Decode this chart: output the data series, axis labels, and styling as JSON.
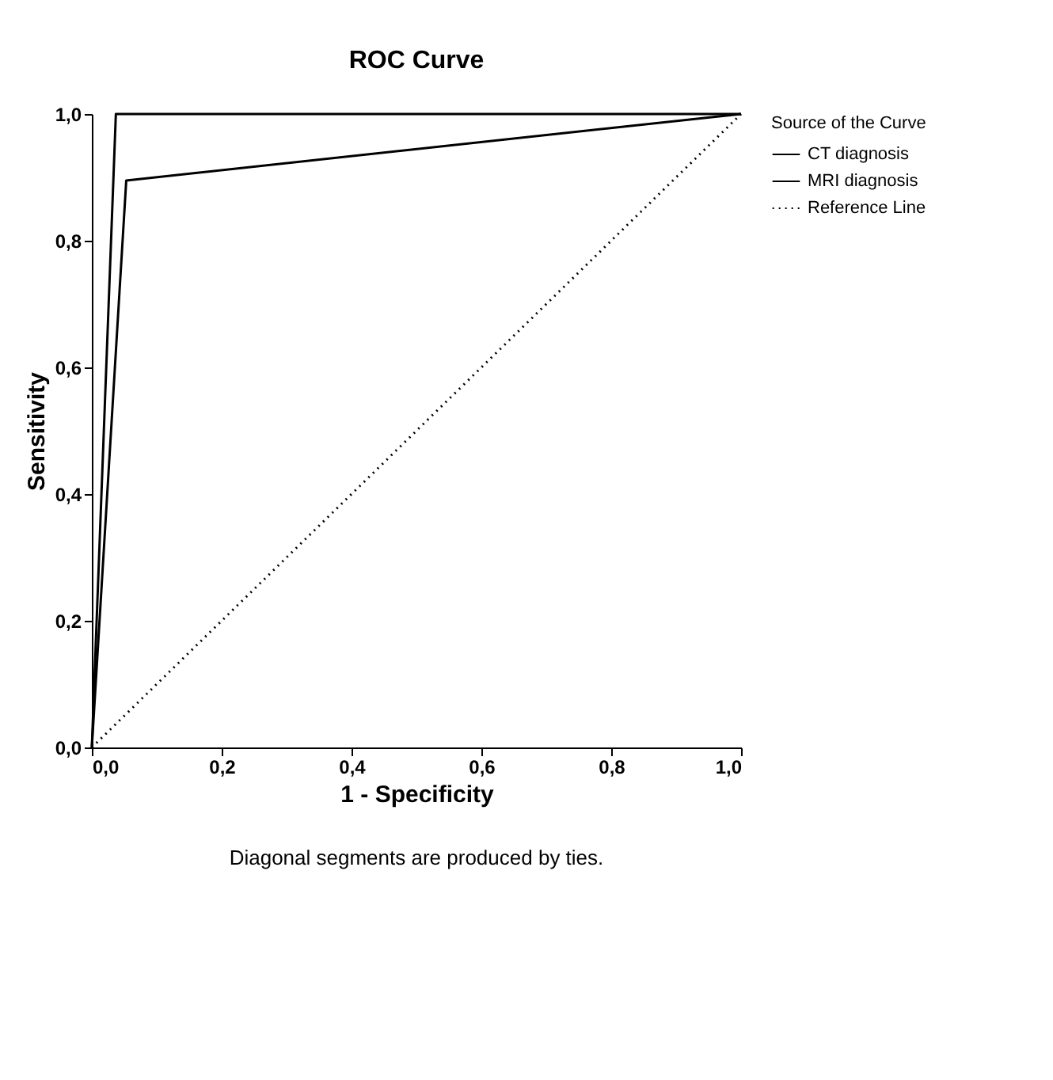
{
  "chart_data": {
    "type": "line",
    "title": "ROC Curve",
    "xlabel": "1 - Specificity",
    "ylabel": "Sensitivity",
    "legend_title": "Source of the Curve",
    "series": [
      {
        "name": "CT diagnosis",
        "color": "#000000",
        "x": [
          0,
          0.053,
          1
        ],
        "values": [
          0,
          0.895,
          1
        ]
      },
      {
        "name": "MRI diagnosis",
        "color": "#000000",
        "x": [
          0,
          0.037,
          1
        ],
        "values": [
          0,
          1,
          1
        ]
      },
      {
        "name": "Reference Line",
        "color": "#000000",
        "type": "line",
        "line_style": "dotted",
        "x": [
          0,
          1
        ],
        "values": [
          0,
          1
        ]
      }
    ],
    "xlim": [
      0,
      1
    ],
    "ylim": [
      0,
      1
    ],
    "xticks": [
      {
        "value": 0,
        "label": "0,0"
      },
      {
        "value": 0.2,
        "label": "0,2"
      },
      {
        "value": 0.4,
        "label": "0,4"
      },
      {
        "value": 0.6,
        "label": "0,6"
      },
      {
        "value": 0.8,
        "label": "0,8"
      },
      {
        "value": 1,
        "label": "1,0"
      }
    ],
    "yticks": [
      {
        "value": 0,
        "label": "0,0"
      },
      {
        "value": 0.2,
        "label": "0,2"
      },
      {
        "value": 0.4,
        "label": "0,4"
      },
      {
        "value": 0.6,
        "label": "0,6"
      },
      {
        "value": 0.8,
        "label": "0,8"
      },
      {
        "value": 1,
        "label": "1,0"
      }
    ],
    "grid": false,
    "legend": "top right",
    "line_style": "solid",
    "annotations": [
      "Diagonal segments are produced by ties."
    ]
  }
}
